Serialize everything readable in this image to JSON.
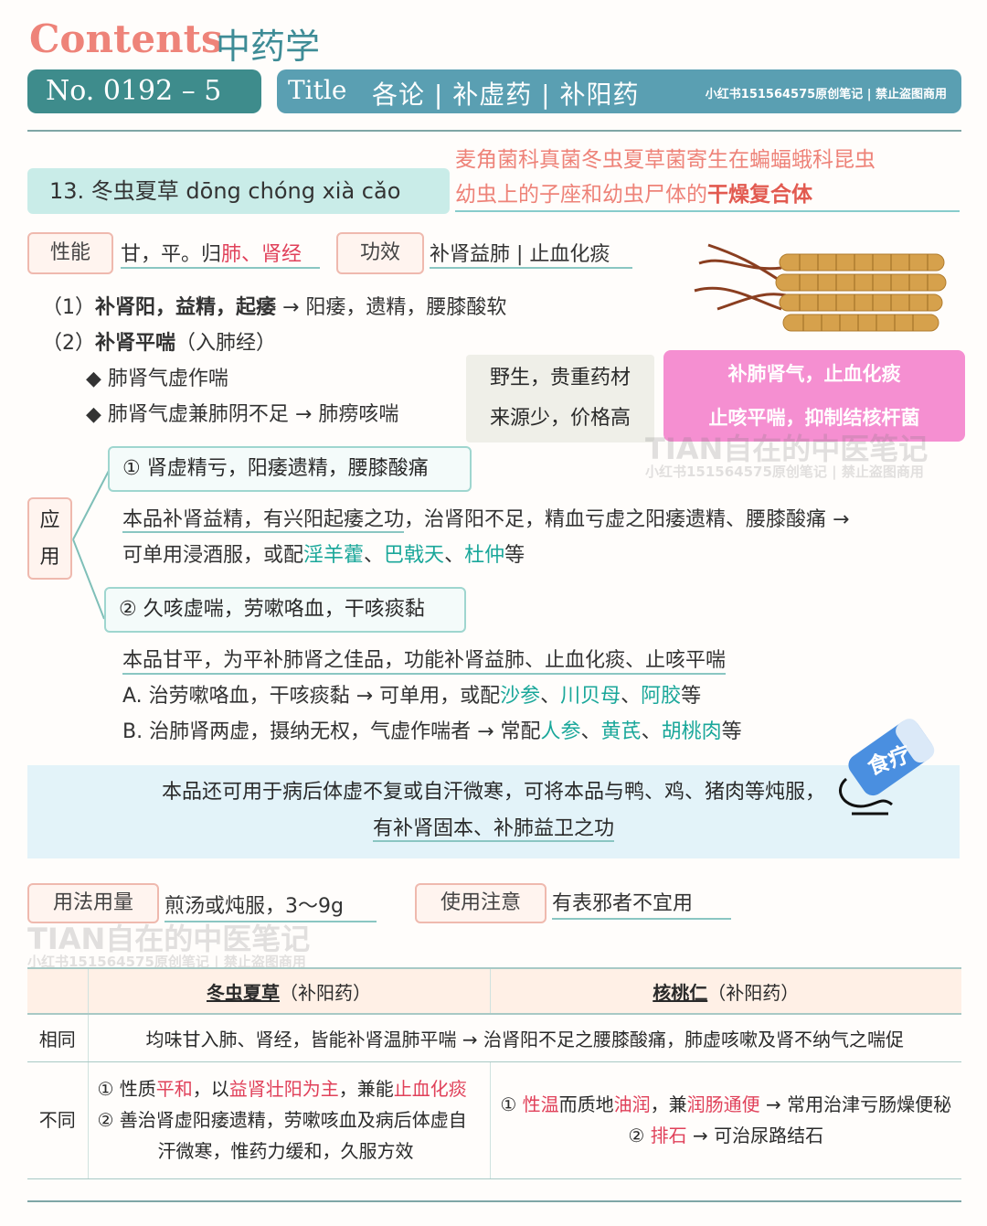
{
  "header": {
    "contents": "Contents",
    "subject": "中药学",
    "number": "No. 0192 – 5",
    "title_word": "Title",
    "title_text": "各论 | 补虚药 | 补阳药",
    "credit": "小红书151564575原创笔记 | 禁止盗图商用"
  },
  "herb": {
    "heading": "13.  冬虫夏草 dōng chóng xià cǎo",
    "origin_line1": "麦角菌科真菌冬虫夏草菌寄生在蝙蝠蛾科昆虫",
    "origin_line2_pre": "幼虫上的子座和幼虫尸体的",
    "origin_line2_bold": "干燥复合体"
  },
  "properties": {
    "label": "性能",
    "pre": "甘，平。归",
    "meridians": "肺、肾经",
    "effect_label": "功效",
    "effect": "补肾益肺 | 止血化痰"
  },
  "actions": {
    "a1_num": "（1）",
    "a1_bold": "补肾阳，益精，起痿",
    "a1_rest": " → 阳痿，遗精，腰膝酸软",
    "a2_num": "（2）",
    "a2_bold": "补肾平喘",
    "a2_rest": "（入肺经）",
    "b1": "◆ 肺肾气虚作喘",
    "b2": "◆ 肺肾气虚兼肺阴不足 → 肺痨咳喘"
  },
  "notes": {
    "gray1": "野生，贵重药材",
    "gray2": "来源少，价格高",
    "pink1": "补肺肾气，止血化痰",
    "pink2": "止咳平喘，抑制结核杆菌"
  },
  "watermark": {
    "big": "TIAN自在的中医笔记",
    "small": "小红书151564575原创笔记 | 禁止盗图商用"
  },
  "application": {
    "label": "应用",
    "label_c1": "应",
    "label_c2": "用",
    "app1_title": "① 肾虚精亏，阳痿遗精，腰膝酸痛",
    "app1_l1_u": "本品补肾益精，有兴阳起痿之功",
    "app1_l1_rest": "，治肾阳不足，精血亏虚之阳痿遗精、腰膝酸痛 →",
    "app1_l2_pre": "可单用浸酒服，或配",
    "app1_h1": "淫羊藿",
    "app1_sep1": "、",
    "app1_h2": "巴戟天",
    "app1_sep2": "、",
    "app1_h3": "杜仲",
    "app1_end": "等",
    "app2_title": "② 久咳虚喘，劳嗽咯血，干咳痰黏",
    "app2_l1": "本品甘平，为平补肺肾之佳品，功能补肾益肺、止血化痰、止咳平喘",
    "app2_a_pre": "A. 治劳嗽咯血，干咳痰黏 → 可单用，或配",
    "app2_a_h1": "沙参",
    "app2_a_h2": "川贝母",
    "app2_a_h3": "阿胶",
    "app2_b_pre": "B. 治肺肾两虚，摄纳无权，气虚作喘者 → 常配",
    "app2_b_h1": "人参",
    "app2_b_h2": "黄芪",
    "app2_b_h3": "胡桃肉",
    "sep": "、",
    "end": "等"
  },
  "diet": {
    "badge": "食疗",
    "line1": "本品还可用于病后体虚不复或自汗微寒，可将本品与鸭、鸡、猪肉等炖服，",
    "line2": "有补肾固本、补肺益卫之功"
  },
  "usage": {
    "label": "用法用量",
    "value": "煎汤或炖服，3～9g",
    "caution_label": "使用注意",
    "caution": "有表邪者不宜用"
  },
  "compare": {
    "h1_name": "冬虫夏草",
    "h1_cat": "（补阳药）",
    "h2_name": "核桃仁",
    "h2_cat": "（补阳药）",
    "same_label": "相同",
    "same_text": "均味甘入肺、肾经，皆能补肾温肺平喘 → 治肾阳不足之腰膝酸痛，肺虚咳嗽及肾不纳气之喘促",
    "diff_label": "不同",
    "d1_a_pre": "① 性质",
    "d1_a_r1": "平和",
    "d1_a_mid": "，以",
    "d1_a_r2": "益肾壮阳为主",
    "d1_a_mid2": "，兼能",
    "d1_a_r3": "止血化痰",
    "d1_b": "② 善治肾虚阳痿遗精，劳嗽咳血及病后体虚自",
    "d1_c": "汗微寒，惟药力缓和，久服方效",
    "d2_a_pre": "① ",
    "d2_a_r1": "性温",
    "d2_a_mid": "而质地",
    "d2_a_r2": "油润",
    "d2_a_mid2": "，兼",
    "d2_a_r3": "润肠通便",
    "d2_a_rest": " → 常用治津亏肠燥便秘",
    "d2_b_pre": "② ",
    "d2_b_r1": "排石",
    "d2_b_rest": " → 可治尿路结石"
  },
  "colors": {
    "accent": "#3e8c8c",
    "red": "#e0415a",
    "teal": "#1aa79a",
    "pink": "#f58fd1"
  }
}
